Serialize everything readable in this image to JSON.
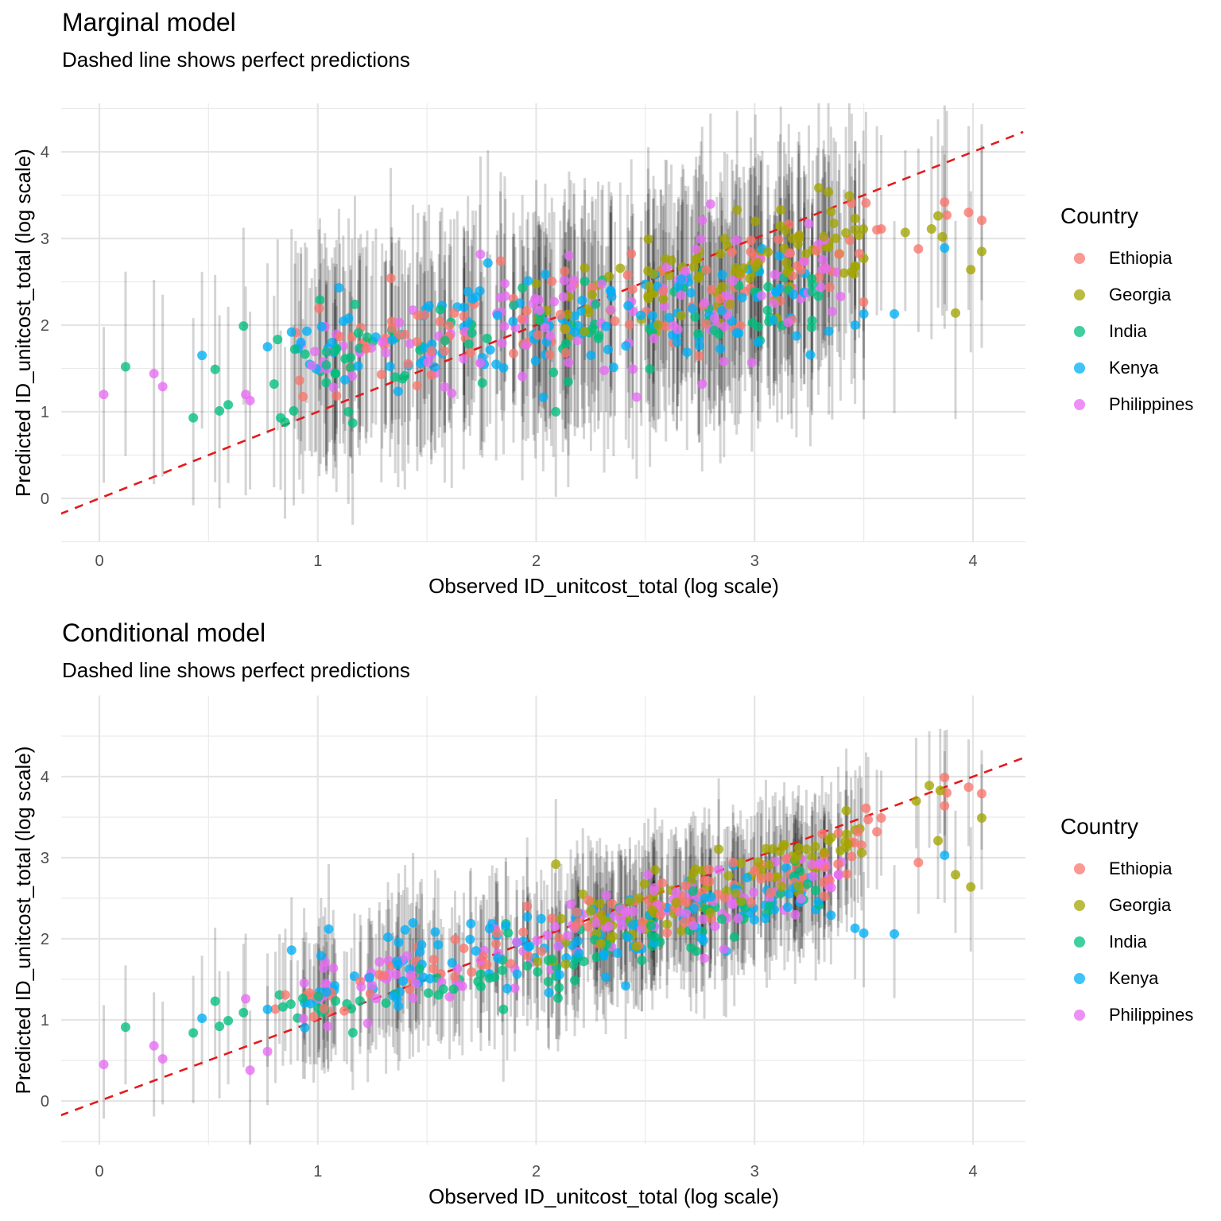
{
  "legend": {
    "title": "Country",
    "items": [
      {
        "label": "Ethiopia",
        "color": "#F8766D"
      },
      {
        "label": "Georgia",
        "color": "#A3A500"
      },
      {
        "label": "India",
        "color": "#00BF7D"
      },
      {
        "label": "Kenya",
        "color": "#00B0F6"
      },
      {
        "label": "Philippines",
        "color": "#E76BF3"
      }
    ]
  },
  "reference_line_color": "#E41A1C",
  "chart_data": [
    {
      "type": "scatter",
      "title": "Marginal model",
      "subtitle": "Dashed line shows perfect predictions",
      "xlabel": "Observed ID_unitcost_total (log scale)",
      "ylabel": "Predicted ID_unitcost_total (log scale)",
      "xlim": [
        -0.18,
        4.23
      ],
      "ylim": [
        -0.5,
        4.65
      ],
      "x_ticks": [
        0,
        1,
        2,
        3,
        4
      ],
      "y_ticks": [
        0,
        1,
        2,
        3,
        4
      ],
      "grid": true,
      "legend_position": "right",
      "reference_line": {
        "slope": 1,
        "intercept": 0,
        "style": "dashed"
      },
      "error_bars": "vertical prediction intervals (grey, semi-transparent)",
      "interval_half_width": 1.05,
      "points": [
        {
          "x": 0.02,
          "y": 1.2,
          "country": "Philippines"
        },
        {
          "x": 0.12,
          "y": 1.52,
          "country": "India"
        },
        {
          "x": 0.25,
          "y": 1.44,
          "country": "Philippines"
        },
        {
          "x": 0.29,
          "y": 1.29,
          "country": "Philippines"
        },
        {
          "x": 0.43,
          "y": 0.93,
          "country": "India"
        },
        {
          "x": 0.47,
          "y": 1.65,
          "country": "Kenya"
        },
        {
          "x": 0.53,
          "y": 1.49,
          "country": "India"
        },
        {
          "x": 0.55,
          "y": 1.01,
          "country": "India"
        },
        {
          "x": 0.59,
          "y": 1.08,
          "country": "India"
        },
        {
          "x": 0.66,
          "y": 1.99,
          "country": "India"
        },
        {
          "x": 0.67,
          "y": 1.2,
          "country": "Philippines"
        },
        {
          "x": 0.69,
          "y": 1.13,
          "country": "Philippines"
        },
        {
          "x": 0.77,
          "y": 1.75,
          "country": "Kenya"
        },
        {
          "x": 0.8,
          "y": 1.32,
          "country": "India"
        },
        {
          "x": 0.83,
          "y": 0.93,
          "country": "India"
        },
        {
          "x": 0.85,
          "y": 0.88,
          "country": "India"
        },
        {
          "x": 0.89,
          "y": 1.01,
          "country": "India"
        },
        {
          "x": 0.88,
          "y": 1.92,
          "country": "Kenya"
        },
        {
          "x": 0.95,
          "y": 1.93,
          "country": "Kenya"
        },
        {
          "x": 1.01,
          "y": 2.29,
          "country": "India"
        },
        {
          "x": 1.04,
          "y": 1.69,
          "country": "India"
        },
        {
          "x": 1.14,
          "y": 1.0,
          "country": "India"
        },
        {
          "x": 1.16,
          "y": 0.87,
          "country": "India"
        },
        {
          "x": 1.17,
          "y": 2.24,
          "country": "India"
        },
        {
          "x": 2.09,
          "y": 1.0,
          "country": "India"
        },
        {
          "x": 2.46,
          "y": 1.17,
          "country": "Philippines"
        },
        {
          "x": 2.76,
          "y": 1.32,
          "country": "Philippines"
        },
        {
          "x": 2.86,
          "y": 1.58,
          "country": "Philippines"
        },
        {
          "x": 2.76,
          "y": 3.21,
          "country": "Philippines"
        },
        {
          "x": 3.34,
          "y": 1.93,
          "country": "Kenya"
        },
        {
          "x": 3.46,
          "y": 2.0,
          "country": "Kenya"
        },
        {
          "x": 3.5,
          "y": 2.13,
          "country": "Kenya"
        },
        {
          "x": 3.64,
          "y": 2.13,
          "country": "Kenya"
        },
        {
          "x": 3.87,
          "y": 2.89,
          "country": "Kenya"
        },
        {
          "x": 3.92,
          "y": 2.14,
          "country": "Georgia"
        },
        {
          "x": 3.99,
          "y": 2.64,
          "country": "Georgia"
        },
        {
          "x": 4.04,
          "y": 2.85,
          "country": "Georgia"
        },
        {
          "x": 3.98,
          "y": 3.3,
          "country": "Ethiopia"
        },
        {
          "x": 4.04,
          "y": 3.21,
          "country": "Ethiopia"
        },
        {
          "x": 3.87,
          "y": 3.42,
          "country": "Ethiopia"
        },
        {
          "x": 3.88,
          "y": 3.27,
          "country": "Ethiopia"
        },
        {
          "x": 3.75,
          "y": 2.88,
          "country": "Ethiopia"
        },
        {
          "x": 3.56,
          "y": 3.1,
          "country": "Ethiopia"
        },
        {
          "x": 3.58,
          "y": 3.11,
          "country": "Ethiopia"
        },
        {
          "x": 3.51,
          "y": 3.41,
          "country": "Ethiopia"
        },
        {
          "x": 3.84,
          "y": 3.26,
          "country": "Georgia"
        },
        {
          "x": 3.69,
          "y": 3.07,
          "country": "Georgia"
        },
        {
          "x": 3.81,
          "y": 3.11,
          "country": "Georgia"
        },
        {
          "x": 3.86,
          "y": 3.02,
          "country": "Georgia"
        },
        {
          "x": 3.5,
          "y": 2.77,
          "country": "Georgia"
        },
        {
          "x": 3.46,
          "y": 3.23,
          "country": "Georgia"
        },
        {
          "x": 2.92,
          "y": 3.33,
          "country": "Georgia"
        },
        {
          "x": 3.12,
          "y": 3.33,
          "country": "Georgia"
        },
        {
          "x": 3.35,
          "y": 3.31,
          "country": "Georgia"
        }
      ],
      "point_cloud": {
        "note": "remaining dense points (approx.), y ≈ a + b·x + noise",
        "by_country": [
          {
            "country": "Ethiopia",
            "n": 110,
            "x_range": [
              0.8,
              3.5
            ],
            "intercept": 1.25,
            "slope": 0.42,
            "sd": 0.32
          },
          {
            "country": "Georgia",
            "n": 95,
            "x_range": [
              2.0,
              3.5
            ],
            "intercept": 0.95,
            "slope": 0.58,
            "sd": 0.3
          },
          {
            "country": "India",
            "n": 85,
            "x_range": [
              0.8,
              3.3
            ],
            "intercept": 1.35,
            "slope": 0.28,
            "sd": 0.32
          },
          {
            "country": "Kenya",
            "n": 120,
            "x_range": [
              0.9,
              3.3
            ],
            "intercept": 1.35,
            "slope": 0.3,
            "sd": 0.3
          },
          {
            "country": "Philippines",
            "n": 120,
            "x_range": [
              0.9,
              3.4
            ],
            "intercept": 1.2,
            "slope": 0.42,
            "sd": 0.38
          }
        ]
      }
    },
    {
      "type": "scatter",
      "title": "Conditional model",
      "subtitle": "Dashed line shows perfect predictions",
      "xlabel": "Observed ID_unitcost_total (log scale)",
      "ylabel": "Predicted ID_unitcost_total (log scale)",
      "xlim": [
        -0.18,
        4.23
      ],
      "ylim": [
        -0.5,
        5.0
      ],
      "x_ticks": [
        0,
        1,
        2,
        3,
        4
      ],
      "y_ticks": [
        0,
        1,
        2,
        3,
        4
      ],
      "grid": true,
      "legend_position": "right",
      "reference_line": {
        "slope": 1,
        "intercept": 0,
        "style": "dashed"
      },
      "error_bars": "vertical prediction intervals (grey, semi-transparent)",
      "interval_half_width": 0.72,
      "points": [
        {
          "x": 0.02,
          "y": 0.45,
          "country": "Philippines"
        },
        {
          "x": 0.12,
          "y": 0.91,
          "country": "India"
        },
        {
          "x": 0.25,
          "y": 0.68,
          "country": "Philippines"
        },
        {
          "x": 0.29,
          "y": 0.52,
          "country": "Philippines"
        },
        {
          "x": 0.43,
          "y": 0.84,
          "country": "India"
        },
        {
          "x": 0.47,
          "y": 1.02,
          "country": "Kenya"
        },
        {
          "x": 0.53,
          "y": 1.23,
          "country": "India"
        },
        {
          "x": 0.55,
          "y": 0.92,
          "country": "India"
        },
        {
          "x": 0.59,
          "y": 0.99,
          "country": "India"
        },
        {
          "x": 0.66,
          "y": 1.09,
          "country": "India"
        },
        {
          "x": 0.67,
          "y": 1.26,
          "country": "Philippines"
        },
        {
          "x": 0.69,
          "y": 0.38,
          "country": "Philippines"
        },
        {
          "x": 0.77,
          "y": 0.61,
          "country": "Philippines"
        },
        {
          "x": 0.77,
          "y": 1.13,
          "country": "Kenya"
        },
        {
          "x": 0.88,
          "y": 1.86,
          "country": "Kenya"
        },
        {
          "x": 1.05,
          "y": 2.12,
          "country": "Kenya"
        },
        {
          "x": 1.85,
          "y": 1.13,
          "country": "India"
        },
        {
          "x": 2.1,
          "y": 1.27,
          "country": "India"
        },
        {
          "x": 2.41,
          "y": 1.42,
          "country": "Kenya"
        },
        {
          "x": 2.77,
          "y": 1.76,
          "country": "Philippines"
        },
        {
          "x": 2.86,
          "y": 1.87,
          "country": "Philippines"
        },
        {
          "x": 2.09,
          "y": 2.92,
          "country": "Georgia"
        },
        {
          "x": 3.28,
          "y": 2.36,
          "country": "Kenya"
        },
        {
          "x": 3.35,
          "y": 2.29,
          "country": "Kenya"
        },
        {
          "x": 3.46,
          "y": 2.13,
          "country": "Kenya"
        },
        {
          "x": 3.5,
          "y": 2.07,
          "country": "Kenya"
        },
        {
          "x": 3.64,
          "y": 2.06,
          "country": "Kenya"
        },
        {
          "x": 3.87,
          "y": 3.03,
          "country": "Kenya"
        },
        {
          "x": 3.92,
          "y": 2.79,
          "country": "Georgia"
        },
        {
          "x": 3.99,
          "y": 2.64,
          "country": "Georgia"
        },
        {
          "x": 4.04,
          "y": 3.49,
          "country": "Georgia"
        },
        {
          "x": 3.84,
          "y": 3.21,
          "country": "Georgia"
        },
        {
          "x": 3.49,
          "y": 3.06,
          "country": "Georgia"
        },
        {
          "x": 3.74,
          "y": 3.7,
          "country": "Georgia"
        },
        {
          "x": 3.8,
          "y": 3.89,
          "country": "Georgia"
        },
        {
          "x": 3.85,
          "y": 3.83,
          "country": "Georgia"
        },
        {
          "x": 3.42,
          "y": 3.58,
          "country": "Georgia"
        },
        {
          "x": 3.75,
          "y": 2.94,
          "country": "Ethiopia"
        },
        {
          "x": 3.87,
          "y": 3.99,
          "country": "Ethiopia"
        },
        {
          "x": 3.88,
          "y": 3.8,
          "country": "Ethiopia"
        },
        {
          "x": 3.87,
          "y": 3.64,
          "country": "Ethiopia"
        },
        {
          "x": 3.98,
          "y": 3.87,
          "country": "Ethiopia"
        },
        {
          "x": 4.04,
          "y": 3.79,
          "country": "Ethiopia"
        },
        {
          "x": 3.51,
          "y": 3.61,
          "country": "Ethiopia"
        },
        {
          "x": 3.52,
          "y": 3.47,
          "country": "Ethiopia"
        },
        {
          "x": 3.56,
          "y": 3.32,
          "country": "Ethiopia"
        },
        {
          "x": 3.58,
          "y": 3.49,
          "country": "Ethiopia"
        }
      ],
      "point_cloud": {
        "note": "remaining dense points (approx.), y ≈ a + b·x + noise",
        "by_country": [
          {
            "country": "Ethiopia",
            "n": 110,
            "x_range": [
              0.8,
              3.5
            ],
            "intercept": 0.55,
            "slope": 0.72,
            "sd": 0.2
          },
          {
            "country": "Georgia",
            "n": 95,
            "x_range": [
              2.0,
              3.5
            ],
            "intercept": 0.25,
            "slope": 0.85,
            "sd": 0.2
          },
          {
            "country": "India",
            "n": 85,
            "x_range": [
              0.8,
              3.3
            ],
            "intercept": 0.35,
            "slope": 0.68,
            "sd": 0.2
          },
          {
            "country": "Kenya",
            "n": 120,
            "x_range": [
              0.9,
              3.3
            ],
            "intercept": 0.95,
            "slope": 0.5,
            "sd": 0.25
          },
          {
            "country": "Philippines",
            "n": 120,
            "x_range": [
              0.9,
              3.4
            ],
            "intercept": 0.65,
            "slope": 0.65,
            "sd": 0.22
          }
        ]
      }
    }
  ]
}
